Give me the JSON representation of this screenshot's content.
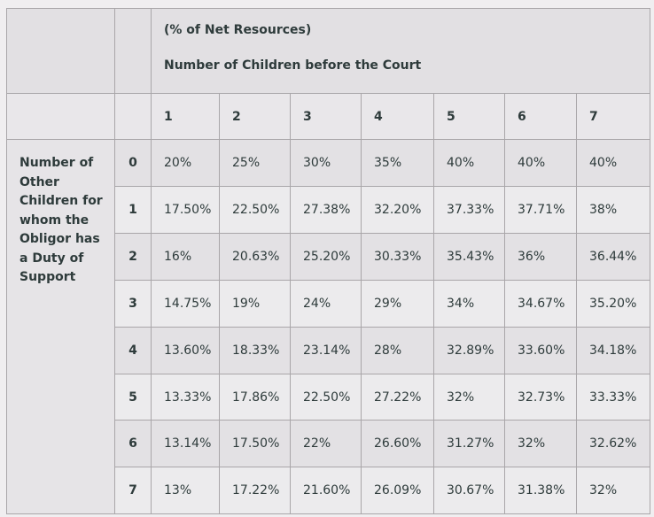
{
  "title_line1": "(% of Net Resources)",
  "title_line2": "Number of Children before the Court",
  "row_header_label": "Number of Other Children for whom the Obligor has a Duty of Support",
  "column_headers": [
    "1",
    "2",
    "3",
    "4",
    "5",
    "6",
    "7"
  ],
  "rows": [
    {
      "index": "0",
      "values": [
        "20%",
        "25%",
        "30%",
        "35%",
        "40%",
        "40%",
        "40%"
      ]
    },
    {
      "index": "1",
      "values": [
        "17.50%",
        "22.50%",
        "27.38%",
        "32.20%",
        "37.33%",
        "37.71%",
        "38%"
      ]
    },
    {
      "index": "2",
      "values": [
        "16%",
        "20.63%",
        "25.20%",
        "30.33%",
        "35.43%",
        "36%",
        "36.44%"
      ]
    },
    {
      "index": "3",
      "values": [
        "14.75%",
        "19%",
        "24%",
        "29%",
        "34%",
        "34.67%",
        "35.20%"
      ]
    },
    {
      "index": "4",
      "values": [
        "13.60%",
        "18.33%",
        "23.14%",
        "28%",
        "32.89%",
        "33.60%",
        "34.18%"
      ]
    },
    {
      "index": "5",
      "values": [
        "13.33%",
        "17.86%",
        "22.50%",
        "27.22%",
        "32%",
        "32.73%",
        "33.33%"
      ]
    },
    {
      "index": "6",
      "values": [
        "13.14%",
        "17.50%",
        "22%",
        "26.60%",
        "31.27%",
        "32%",
        "32.62%"
      ]
    },
    {
      "index": "7",
      "values": [
        "13%",
        "17.22%",
        "21.60%",
        "26.09%",
        "30.67%",
        "31.38%",
        "32%"
      ]
    }
  ]
}
